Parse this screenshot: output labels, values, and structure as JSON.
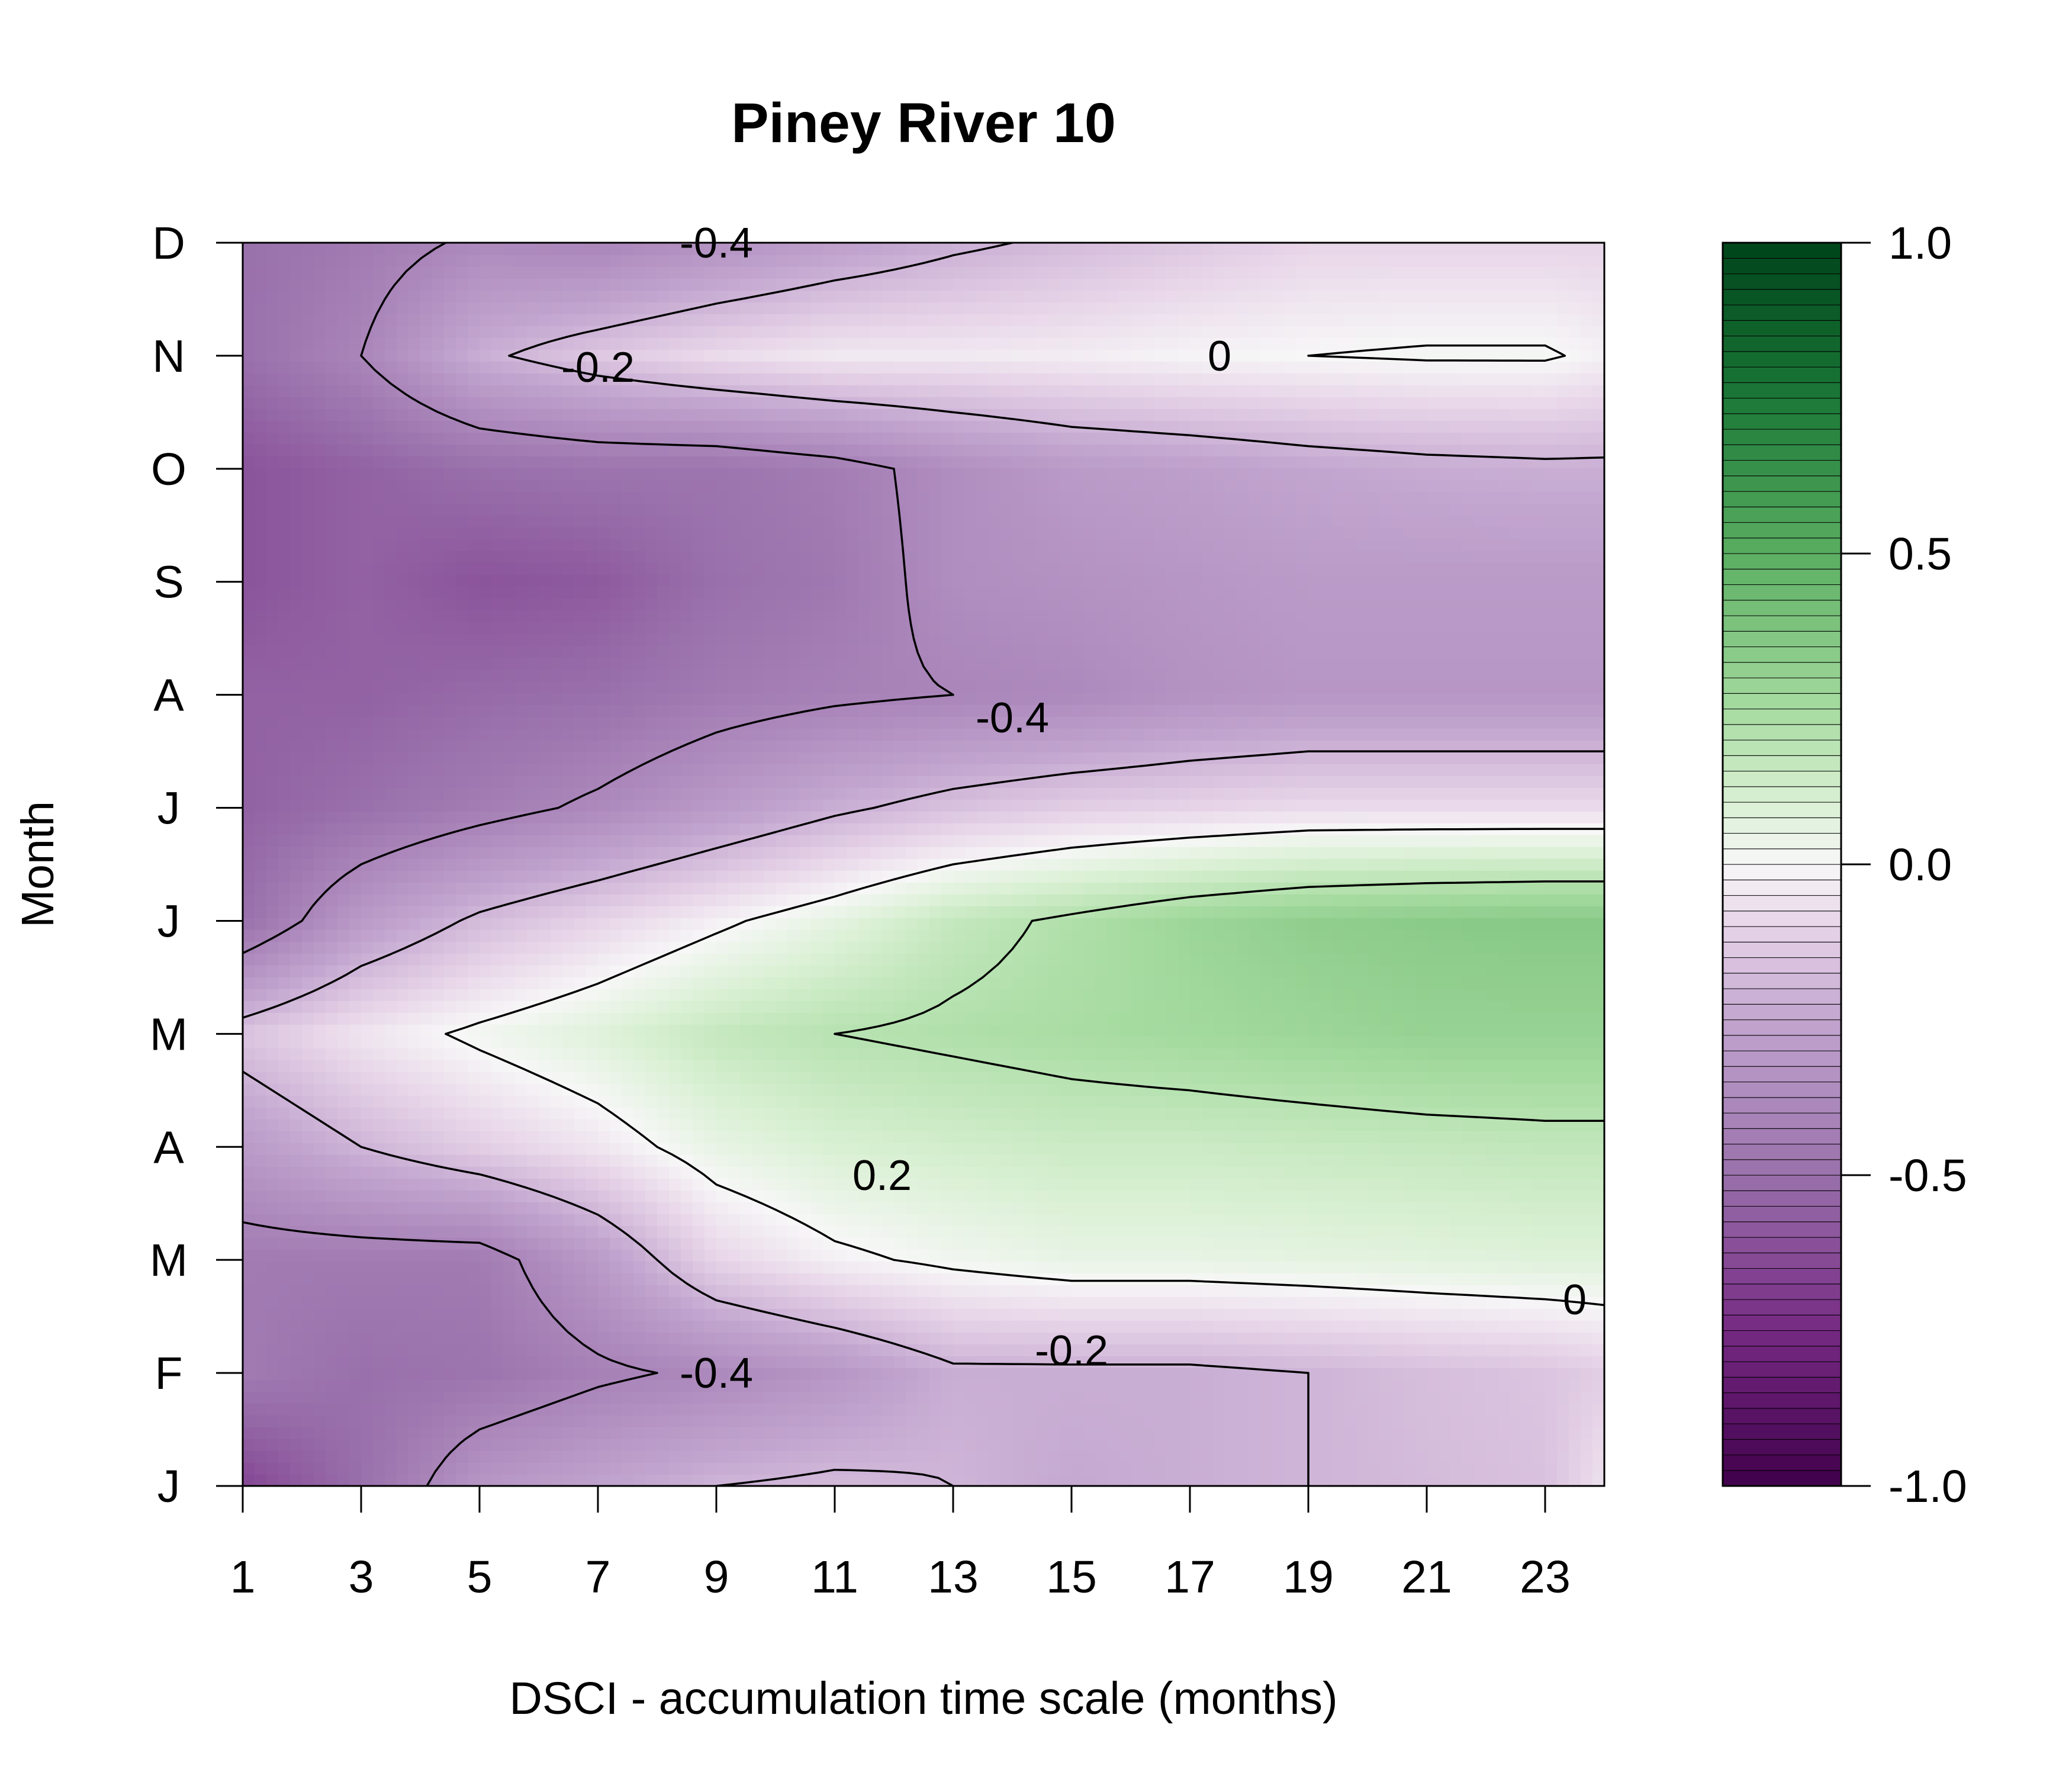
{
  "chart_data": {
    "type": "heatmap",
    "subtype": "filled-contour",
    "title": "Piney River 10",
    "xlabel": "DSCI - accumulation time scale (months)",
    "ylabel": "Month",
    "x_ticks": [
      1,
      3,
      5,
      7,
      9,
      11,
      13,
      15,
      17,
      19,
      21,
      23
    ],
    "xlim": [
      1,
      24
    ],
    "y_ticks": [
      "J",
      "F",
      "M",
      "A",
      "M",
      "J",
      "J",
      "A",
      "S",
      "O",
      "N",
      "D"
    ],
    "ylim": [
      1,
      12
    ],
    "colorbar": {
      "ticks": [
        "-1.0",
        "-0.5",
        "0.0",
        "0.5",
        "1.0"
      ],
      "range": [
        -1,
        1
      ],
      "low_color": "#40004b",
      "mid_color": "#ffffff",
      "high_color": "#00441b"
    },
    "contour_levels": [
      -0.4,
      -0.2,
      0,
      0.2
    ],
    "contour_labels": [
      {
        "text": "-0.4",
        "x": 9.0,
        "y": 12.0
      },
      {
        "text": "-0.2",
        "x": 7.0,
        "y": 10.9
      },
      {
        "text": "0",
        "x": 17.5,
        "y": 11.0
      },
      {
        "text": "-0.4",
        "x": 14.0,
        "y": 7.8
      },
      {
        "text": "0.2",
        "x": 11.8,
        "y": 3.75
      },
      {
        "text": "0",
        "x": 23.5,
        "y": 2.65
      },
      {
        "text": "-0.2",
        "x": 15.0,
        "y": 2.2
      },
      {
        "text": "-0.4",
        "x": 9.0,
        "y": 2.0
      }
    ],
    "x_months": [
      1,
      3,
      5,
      7,
      9,
      11,
      13,
      15,
      17,
      19,
      21,
      23,
      24
    ],
    "z_rows": [
      [
        -0.65,
        -0.5,
        -0.32,
        -0.26,
        -0.2,
        -0.18,
        -0.2,
        -0.24,
        -0.22,
        -0.2,
        -0.18,
        -0.16,
        -0.06
      ],
      [
        -0.45,
        -0.5,
        -0.48,
        -0.42,
        -0.38,
        -0.32,
        -0.22,
        -0.22,
        -0.22,
        -0.2,
        -0.17,
        -0.15,
        -0.12
      ],
      [
        -0.45,
        -0.45,
        -0.45,
        -0.3,
        -0.1,
        -0.02,
        0.02,
        0.05,
        0.05,
        0.06,
        0.07,
        0.08,
        0.08
      ],
      [
        -0.3,
        -0.2,
        -0.12,
        -0.05,
        0.05,
        0.1,
        0.12,
        0.14,
        0.14,
        0.15,
        0.16,
        0.17,
        0.17
      ],
      [
        -0.15,
        -0.05,
        0.02,
        0.08,
        0.16,
        0.2,
        0.22,
        0.24,
        0.26,
        0.28,
        0.3,
        0.3,
        0.3
      ],
      [
        -0.5,
        -0.3,
        -0.18,
        -0.1,
        -0.02,
        0.06,
        0.16,
        0.22,
        0.28,
        0.32,
        0.34,
        0.35,
        0.35
      ],
      [
        -0.55,
        -0.5,
        -0.44,
        -0.38,
        -0.3,
        -0.22,
        -0.16,
        -0.12,
        -0.1,
        -0.08,
        -0.08,
        -0.08,
        -0.08
      ],
      [
        -0.55,
        -0.55,
        -0.52,
        -0.5,
        -0.45,
        -0.42,
        -0.4,
        -0.38,
        -0.34,
        -0.32,
        -0.32,
        -0.32,
        -0.32
      ],
      [
        -0.6,
        -0.55,
        -0.6,
        -0.58,
        -0.5,
        -0.46,
        -0.36,
        -0.34,
        -0.32,
        -0.3,
        -0.3,
        -0.3,
        -0.3
      ],
      [
        -0.6,
        -0.55,
        -0.5,
        -0.48,
        -0.48,
        -0.44,
        -0.36,
        -0.3,
        -0.28,
        -0.25,
        -0.23,
        -0.22,
        -0.22
      ],
      [
        -0.5,
        -0.4,
        -0.22,
        -0.14,
        -0.08,
        -0.04,
        -0.04,
        -0.03,
        -0.01,
        0.0,
        0.01,
        0.01,
        -0.02
      ],
      [
        -0.5,
        -0.45,
        -0.38,
        -0.4,
        -0.34,
        -0.28,
        -0.22,
        -0.18,
        -0.14,
        -0.1,
        -0.1,
        -0.1,
        -0.1
      ]
    ]
  }
}
